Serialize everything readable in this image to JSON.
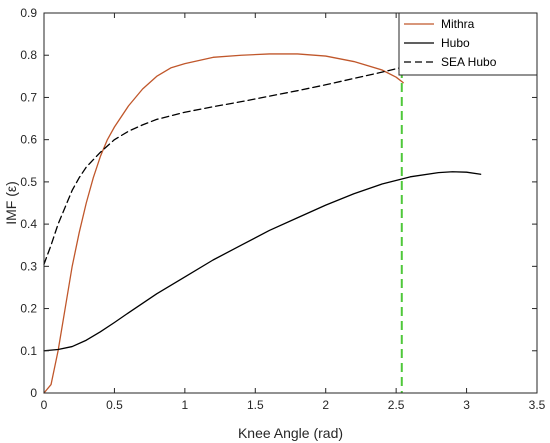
{
  "chart_data": {
    "type": "line",
    "title": "",
    "xlabel": "Knee Angle (rad)",
    "ylabel": "IMF (ε)",
    "xlim": [
      0,
      3.5
    ],
    "ylim": [
      0,
      0.9
    ],
    "xticks": [
      0,
      0.5,
      1,
      1.5,
      2,
      2.5,
      3,
      3.5
    ],
    "yticks": [
      0,
      0.1,
      0.2,
      0.3,
      0.4,
      0.5,
      0.6,
      0.7,
      0.8,
      0.9
    ],
    "grid": false,
    "legend_position": "top-right",
    "series": [
      {
        "name": "Mithra",
        "color": "#c0572b",
        "style": "solid",
        "x": [
          0,
          0.05,
          0.1,
          0.15,
          0.2,
          0.25,
          0.3,
          0.35,
          0.4,
          0.45,
          0.5,
          0.6,
          0.7,
          0.8,
          0.9,
          1.0,
          1.2,
          1.4,
          1.6,
          1.8,
          2.0,
          2.2,
          2.4,
          2.5,
          2.55
        ],
        "y": [
          0.0,
          0.02,
          0.1,
          0.2,
          0.3,
          0.38,
          0.45,
          0.51,
          0.56,
          0.6,
          0.63,
          0.68,
          0.72,
          0.75,
          0.77,
          0.78,
          0.795,
          0.8,
          0.803,
          0.803,
          0.798,
          0.785,
          0.765,
          0.748,
          0.735
        ]
      },
      {
        "name": "Hubo",
        "color": "#000000",
        "style": "solid",
        "x": [
          0,
          0.1,
          0.2,
          0.3,
          0.4,
          0.5,
          0.6,
          0.8,
          1.0,
          1.2,
          1.4,
          1.6,
          1.8,
          2.0,
          2.2,
          2.4,
          2.6,
          2.8,
          2.9,
          3.0,
          3.1
        ],
        "y": [
          0.1,
          0.103,
          0.11,
          0.125,
          0.145,
          0.167,
          0.19,
          0.235,
          0.275,
          0.315,
          0.35,
          0.385,
          0.415,
          0.445,
          0.472,
          0.495,
          0.512,
          0.522,
          0.524,
          0.523,
          0.518
        ]
      },
      {
        "name": "SEA Hubo",
        "color": "#000000",
        "style": "dashed",
        "x": [
          0,
          0.05,
          0.1,
          0.15,
          0.2,
          0.25,
          0.3,
          0.4,
          0.5,
          0.6,
          0.7,
          0.8,
          1.0,
          1.2,
          1.4,
          1.6,
          1.8,
          2.0,
          2.2,
          2.4,
          2.6,
          2.8,
          2.9
        ],
        "y": [
          0.305,
          0.35,
          0.4,
          0.44,
          0.48,
          0.51,
          0.535,
          0.57,
          0.6,
          0.62,
          0.635,
          0.648,
          0.665,
          0.678,
          0.69,
          0.703,
          0.716,
          0.73,
          0.745,
          0.76,
          0.776,
          0.79,
          0.8
        ]
      }
    ],
    "reference_lines": [
      {
        "orientation": "vertical",
        "x": 2.54,
        "color": "#4fc83a",
        "style": "dashed"
      }
    ]
  }
}
